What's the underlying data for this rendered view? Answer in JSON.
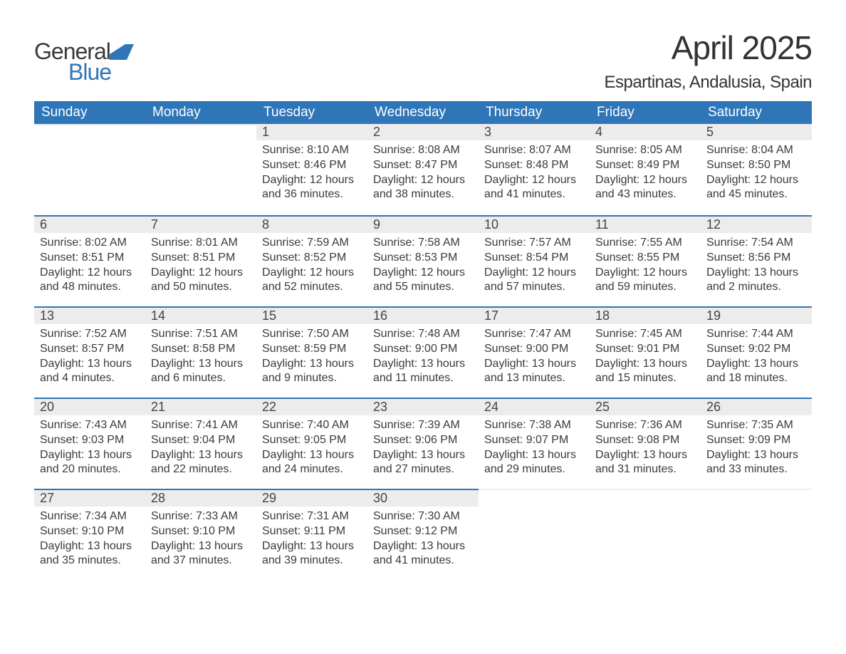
{
  "logo": {
    "word1": "General",
    "word2": "Blue",
    "brand_color": "#2f76b8"
  },
  "title": "April 2025",
  "location": "Espartinas, Andalusia, Spain",
  "colors": {
    "header_bg": "#2f76b8",
    "header_text": "#ffffff",
    "daynum_bg": "#ececec",
    "row_divider": "#2f76b8",
    "body_text": "#3a3a3a",
    "page_bg": "#ffffff"
  },
  "typography": {
    "title_fontsize": 46,
    "location_fontsize": 24,
    "header_fontsize": 19,
    "cell_fontsize": 16
  },
  "layout": {
    "columns": 7,
    "rows": 5,
    "first_day_column_index": 2,
    "days_in_month": 30
  },
  "weekday_labels": [
    "Sunday",
    "Monday",
    "Tuesday",
    "Wednesday",
    "Thursday",
    "Friday",
    "Saturday"
  ],
  "field_labels": {
    "sunrise": "Sunrise",
    "sunset": "Sunset",
    "daylight": "Daylight"
  },
  "days": [
    {
      "n": 1,
      "sunrise": "8:10 AM",
      "sunset": "8:46 PM",
      "daylight": "12 hours and 36 minutes."
    },
    {
      "n": 2,
      "sunrise": "8:08 AM",
      "sunset": "8:47 PM",
      "daylight": "12 hours and 38 minutes."
    },
    {
      "n": 3,
      "sunrise": "8:07 AM",
      "sunset": "8:48 PM",
      "daylight": "12 hours and 41 minutes."
    },
    {
      "n": 4,
      "sunrise": "8:05 AM",
      "sunset": "8:49 PM",
      "daylight": "12 hours and 43 minutes."
    },
    {
      "n": 5,
      "sunrise": "8:04 AM",
      "sunset": "8:50 PM",
      "daylight": "12 hours and 45 minutes."
    },
    {
      "n": 6,
      "sunrise": "8:02 AM",
      "sunset": "8:51 PM",
      "daylight": "12 hours and 48 minutes."
    },
    {
      "n": 7,
      "sunrise": "8:01 AM",
      "sunset": "8:51 PM",
      "daylight": "12 hours and 50 minutes."
    },
    {
      "n": 8,
      "sunrise": "7:59 AM",
      "sunset": "8:52 PM",
      "daylight": "12 hours and 52 minutes."
    },
    {
      "n": 9,
      "sunrise": "7:58 AM",
      "sunset": "8:53 PM",
      "daylight": "12 hours and 55 minutes."
    },
    {
      "n": 10,
      "sunrise": "7:57 AM",
      "sunset": "8:54 PM",
      "daylight": "12 hours and 57 minutes."
    },
    {
      "n": 11,
      "sunrise": "7:55 AM",
      "sunset": "8:55 PM",
      "daylight": "12 hours and 59 minutes."
    },
    {
      "n": 12,
      "sunrise": "7:54 AM",
      "sunset": "8:56 PM",
      "daylight": "13 hours and 2 minutes."
    },
    {
      "n": 13,
      "sunrise": "7:52 AM",
      "sunset": "8:57 PM",
      "daylight": "13 hours and 4 minutes."
    },
    {
      "n": 14,
      "sunrise": "7:51 AM",
      "sunset": "8:58 PM",
      "daylight": "13 hours and 6 minutes."
    },
    {
      "n": 15,
      "sunrise": "7:50 AM",
      "sunset": "8:59 PM",
      "daylight": "13 hours and 9 minutes."
    },
    {
      "n": 16,
      "sunrise": "7:48 AM",
      "sunset": "9:00 PM",
      "daylight": "13 hours and 11 minutes."
    },
    {
      "n": 17,
      "sunrise": "7:47 AM",
      "sunset": "9:00 PM",
      "daylight": "13 hours and 13 minutes."
    },
    {
      "n": 18,
      "sunrise": "7:45 AM",
      "sunset": "9:01 PM",
      "daylight": "13 hours and 15 minutes."
    },
    {
      "n": 19,
      "sunrise": "7:44 AM",
      "sunset": "9:02 PM",
      "daylight": "13 hours and 18 minutes."
    },
    {
      "n": 20,
      "sunrise": "7:43 AM",
      "sunset": "9:03 PM",
      "daylight": "13 hours and 20 minutes."
    },
    {
      "n": 21,
      "sunrise": "7:41 AM",
      "sunset": "9:04 PM",
      "daylight": "13 hours and 22 minutes."
    },
    {
      "n": 22,
      "sunrise": "7:40 AM",
      "sunset": "9:05 PM",
      "daylight": "13 hours and 24 minutes."
    },
    {
      "n": 23,
      "sunrise": "7:39 AM",
      "sunset": "9:06 PM",
      "daylight": "13 hours and 27 minutes."
    },
    {
      "n": 24,
      "sunrise": "7:38 AM",
      "sunset": "9:07 PM",
      "daylight": "13 hours and 29 minutes."
    },
    {
      "n": 25,
      "sunrise": "7:36 AM",
      "sunset": "9:08 PM",
      "daylight": "13 hours and 31 minutes."
    },
    {
      "n": 26,
      "sunrise": "7:35 AM",
      "sunset": "9:09 PM",
      "daylight": "13 hours and 33 minutes."
    },
    {
      "n": 27,
      "sunrise": "7:34 AM",
      "sunset": "9:10 PM",
      "daylight": "13 hours and 35 minutes."
    },
    {
      "n": 28,
      "sunrise": "7:33 AM",
      "sunset": "9:10 PM",
      "daylight": "13 hours and 37 minutes."
    },
    {
      "n": 29,
      "sunrise": "7:31 AM",
      "sunset": "9:11 PM",
      "daylight": "13 hours and 39 minutes."
    },
    {
      "n": 30,
      "sunrise": "7:30 AM",
      "sunset": "9:12 PM",
      "daylight": "13 hours and 41 minutes."
    }
  ]
}
